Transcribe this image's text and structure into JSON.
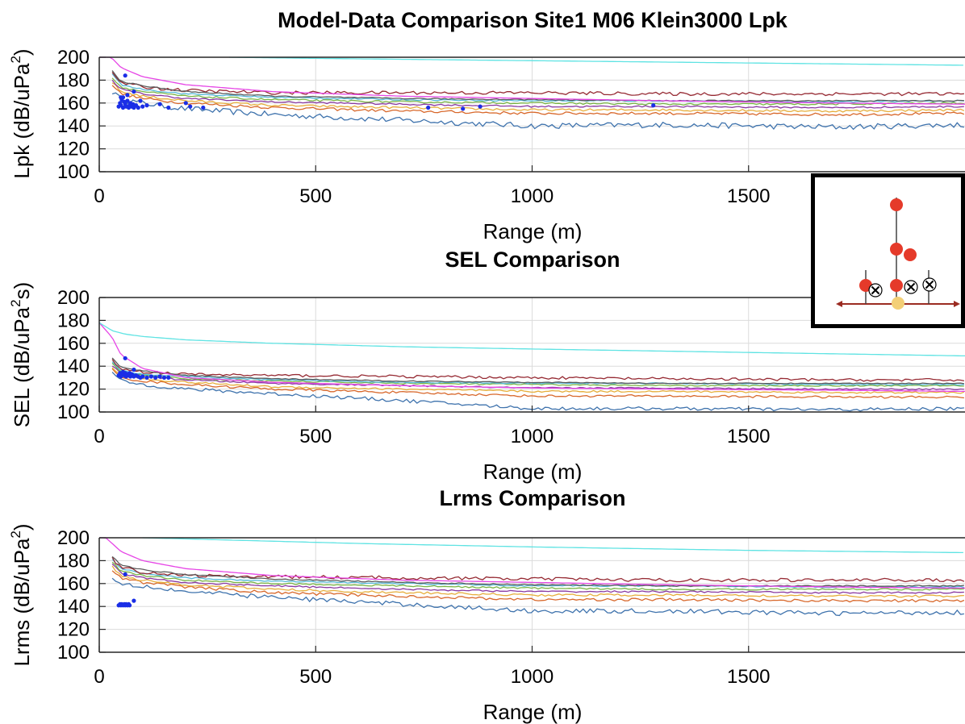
{
  "figure": {
    "title": "Model-Data Comparison Site1 M06 Klein3000 Lpk"
  },
  "colors": {
    "data_points": "#1a2ee6",
    "series": [
      "#3f73ad",
      "#d8682b",
      "#e6ae3c",
      "#8a3aa1",
      "#7ab547",
      "#56b9d8",
      "#962a33",
      "#5b5b5b",
      "#e645e6",
      "#5fe3e3"
    ]
  },
  "chart_data": [
    {
      "type": "line",
      "name": "lpk",
      "title": "",
      "xlabel": "Range (m)",
      "ylabel_prefix": "Lpk (dB/uPa",
      "ylabel_sup": "2",
      "ylabel_suffix": ")",
      "xlim": [
        0,
        2000
      ],
      "ylim": [
        100,
        200
      ],
      "xticks": [
        0,
        500,
        1000,
        1500
      ],
      "yticks": [
        100,
        120,
        140,
        160,
        180,
        200
      ],
      "xtick_labels": [
        "0",
        "500",
        "1000",
        "1500"
      ],
      "ytick_labels": [
        "100",
        "120",
        "140",
        "160",
        "180",
        "200"
      ],
      "grid": true,
      "series": [
        {
          "x": [
            30,
            50,
            100,
            200,
            400,
            700,
            1000,
            1300,
            1700,
            2000
          ],
          "values": [
            170,
            163,
            160,
            155,
            150,
            145,
            140,
            141,
            139,
            141
          ],
          "noise": 2.5
        },
        {
          "x": [
            30,
            50,
            100,
            200,
            400,
            700,
            1000,
            1300,
            1700,
            2000
          ],
          "values": [
            176,
            168,
            164,
            160,
            156,
            153,
            151,
            151,
            150,
            151
          ],
          "noise": 1.2
        },
        {
          "x": [
            30,
            50,
            100,
            200,
            400,
            700,
            1000,
            1300,
            1700,
            2000
          ],
          "values": [
            178,
            170,
            166,
            162,
            158,
            156,
            154,
            154,
            153,
            154
          ],
          "noise": 1.0
        },
        {
          "x": [
            30,
            50,
            100,
            200,
            400,
            700,
            1000,
            1300,
            1700,
            2000
          ],
          "values": [
            180,
            172,
            168,
            164,
            161,
            159,
            157,
            157,
            156,
            157
          ],
          "noise": 0.7
        },
        {
          "x": [
            30,
            50,
            100,
            200,
            400,
            700,
            1000,
            1300,
            1700,
            2000
          ],
          "values": [
            182,
            174,
            170,
            166,
            163,
            161,
            160,
            159,
            159,
            160
          ],
          "noise": 0.8
        },
        {
          "x": [
            30,
            50,
            100,
            200,
            400,
            700,
            1000,
            1300,
            1700,
            2000
          ],
          "values": [
            185,
            176,
            172,
            168,
            165,
            163,
            162,
            162,
            161,
            162
          ],
          "noise": 0.6
        },
        {
          "x": [
            30,
            50,
            100,
            200,
            400,
            700,
            1000,
            1300,
            1700,
            2000
          ],
          "values": [
            186,
            178,
            174,
            171,
            169,
            169,
            169,
            168,
            168,
            168
          ],
          "noise": 1.5
        },
        {
          "x": [
            30,
            50,
            100,
            200,
            400,
            700,
            1000,
            1300,
            1700,
            2000
          ],
          "values": [
            188,
            179,
            175,
            170,
            166,
            164,
            163,
            162,
            162,
            162
          ],
          "noise": 0.5
        },
        {
          "x": [
            0,
            30,
            50,
            100,
            200,
            400,
            700,
            1000,
            1300,
            1700,
            2000
          ],
          "values": [
            205,
            199,
            191,
            183,
            176,
            170,
            166,
            164,
            162,
            160,
            159
          ],
          "noise": 0
        },
        {
          "x": [
            300,
            500,
            1000,
            1500,
            2000
          ],
          "values": [
            200,
            199,
            197,
            195,
            193
          ],
          "noise": 0
        }
      ],
      "points": {
        "x": [
          45,
          48,
          50,
          52,
          55,
          58,
          60,
          62,
          65,
          68,
          70,
          72,
          75,
          78,
          80,
          85,
          90,
          95,
          100,
          110,
          140,
          160,
          200,
          210,
          240,
          60,
          80,
          50,
          55,
          65,
          760,
          840,
          880,
          1280
        ],
        "y": [
          157,
          160,
          158,
          163,
          156,
          161,
          159,
          157,
          162,
          156,
          158,
          160,
          157,
          159,
          156,
          158,
          156,
          162,
          157,
          158,
          159,
          156,
          160,
          157,
          156,
          184,
          170,
          165,
          165,
          167,
          156,
          155,
          157,
          158
        ]
      }
    },
    {
      "type": "line",
      "name": "sel",
      "title": "SEL Comparison",
      "xlabel": "Range (m)",
      "ylabel_prefix": "SEL (dB/uPa",
      "ylabel_sup": "2",
      "ylabel_suffix": "s)",
      "xlim": [
        0,
        2000
      ],
      "ylim": [
        100,
        200
      ],
      "xticks": [
        0,
        500,
        1000,
        1500
      ],
      "yticks": [
        100,
        120,
        140,
        160,
        180,
        200
      ],
      "xtick_labels": [
        "0",
        "500",
        "1000",
        "1500"
      ],
      "ytick_labels": [
        "100",
        "120",
        "140",
        "160",
        "180",
        "200"
      ],
      "grid": true,
      "series": [
        {
          "x": [
            30,
            50,
            100,
            200,
            400,
            700,
            1000,
            1300,
            1700,
            2000
          ],
          "values": [
            135,
            127,
            124,
            120,
            116,
            110,
            103,
            103,
            102,
            103
          ],
          "noise": 1.5
        },
        {
          "x": [
            30,
            50,
            100,
            200,
            400,
            700,
            1000,
            1300,
            1700,
            2000
          ],
          "values": [
            137,
            130,
            127,
            124,
            120,
            117,
            114,
            114,
            113,
            113
          ],
          "noise": 1.0
        },
        {
          "x": [
            30,
            50,
            100,
            200,
            400,
            700,
            1000,
            1300,
            1700,
            2000
          ],
          "values": [
            139,
            132,
            129,
            126,
            122,
            120,
            118,
            118,
            117,
            117
          ],
          "noise": 0.8
        },
        {
          "x": [
            30,
            50,
            100,
            200,
            400,
            700,
            1000,
            1300,
            1700,
            2000
          ],
          "values": [
            140,
            134,
            131,
            128,
            125,
            123,
            121,
            121,
            120,
            120
          ],
          "noise": 0.6
        },
        {
          "x": [
            30,
            50,
            100,
            200,
            400,
            700,
            1000,
            1300,
            1700,
            2000
          ],
          "values": [
            142,
            135,
            132,
            129,
            127,
            125,
            124,
            123,
            123,
            123
          ],
          "noise": 0.6
        },
        {
          "x": [
            30,
            50,
            100,
            200,
            400,
            700,
            1000,
            1300,
            1700,
            2000
          ],
          "values": [
            144,
            136,
            133,
            131,
            128,
            126,
            125,
            125,
            124,
            124
          ],
          "noise": 0.5
        },
        {
          "x": [
            30,
            50,
            100,
            200,
            400,
            700,
            1000,
            1300,
            1700,
            2000
          ],
          "values": [
            145,
            138,
            135,
            133,
            132,
            131,
            130,
            129,
            128,
            128
          ],
          "noise": 1.2
        },
        {
          "x": [
            30,
            50,
            100,
            200,
            400,
            700,
            1000,
            1300,
            1700,
            2000
          ],
          "values": [
            147,
            139,
            136,
            132,
            129,
            127,
            126,
            125,
            125,
            125
          ],
          "noise": 0.4
        },
        {
          "x": [
            0,
            30,
            50,
            100,
            200,
            400,
            700,
            1000,
            1300,
            1700,
            2000
          ],
          "values": [
            178,
            165,
            150,
            138,
            130,
            126,
            123,
            121,
            120,
            119,
            118
          ],
          "noise": 0
        },
        {
          "x": [
            0,
            30,
            60,
            100,
            200,
            400,
            700,
            1000,
            1500,
            2000
          ],
          "values": [
            178,
            171,
            168,
            166,
            163,
            160,
            157,
            155,
            152,
            149
          ],
          "noise": 0
        }
      ],
      "points": {
        "x": [
          45,
          48,
          50,
          52,
          55,
          58,
          60,
          62,
          65,
          68,
          70,
          72,
          75,
          78,
          80,
          85,
          90,
          95,
          100,
          110,
          120,
          130,
          140,
          150,
          160,
          60,
          80
        ],
        "y": [
          132,
          134,
          131,
          133,
          135,
          132,
          134,
          131,
          133,
          132,
          134,
          131,
          133,
          132,
          131,
          132,
          131,
          130,
          131,
          130,
          131,
          130,
          131,
          130,
          130,
          147,
          137
        ]
      }
    },
    {
      "type": "line",
      "name": "lrms",
      "title": "Lrms Comparison",
      "xlabel": "Range (m)",
      "ylabel_prefix": "Lrms (dB/uPa",
      "ylabel_sup": "2",
      "ylabel_suffix": ")",
      "xlim": [
        0,
        2000
      ],
      "ylim": [
        100,
        200
      ],
      "xticks": [
        0,
        500,
        1000,
        1500
      ],
      "yticks": [
        100,
        120,
        140,
        160,
        180,
        200
      ],
      "xtick_labels": [
        "0",
        "500",
        "1000",
        "1500"
      ],
      "ytick_labels": [
        "100",
        "120",
        "140",
        "160",
        "180",
        "200"
      ],
      "grid": true,
      "series": [
        {
          "x": [
            30,
            50,
            100,
            200,
            400,
            700,
            1000,
            1300,
            1700,
            2000
          ],
          "values": [
            165,
            160,
            158,
            153,
            148,
            142,
            136,
            136,
            134,
            135
          ],
          "noise": 2.0
        },
        {
          "x": [
            30,
            50,
            100,
            200,
            400,
            700,
            1000,
            1300,
            1700,
            2000
          ],
          "values": [
            172,
            165,
            161,
            157,
            152,
            149,
            146,
            146,
            145,
            145
          ],
          "noise": 1.2
        },
        {
          "x": [
            30,
            50,
            100,
            200,
            400,
            700,
            1000,
            1300,
            1700,
            2000
          ],
          "values": [
            175,
            167,
            163,
            159,
            155,
            152,
            150,
            150,
            149,
            149
          ],
          "noise": 1.0
        },
        {
          "x": [
            30,
            50,
            100,
            200,
            400,
            700,
            1000,
            1300,
            1700,
            2000
          ],
          "values": [
            177,
            169,
            165,
            161,
            158,
            155,
            153,
            153,
            152,
            152
          ],
          "noise": 0.7
        },
        {
          "x": [
            30,
            50,
            100,
            200,
            400,
            700,
            1000,
            1300,
            1700,
            2000
          ],
          "values": [
            179,
            171,
            167,
            163,
            160,
            158,
            156,
            155,
            155,
            155
          ],
          "noise": 0.7
        },
        {
          "x": [
            30,
            50,
            100,
            200,
            400,
            700,
            1000,
            1300,
            1700,
            2000
          ],
          "values": [
            181,
            173,
            169,
            165,
            162,
            160,
            158,
            158,
            157,
            157
          ],
          "noise": 0.6
        },
        {
          "x": [
            30,
            50,
            100,
            200,
            400,
            700,
            1000,
            1300,
            1700,
            2000
          ],
          "values": [
            182,
            174,
            170,
            167,
            166,
            165,
            164,
            163,
            163,
            163
          ],
          "noise": 1.5
        },
        {
          "x": [
            30,
            50,
            100,
            200,
            400,
            700,
            1000,
            1300,
            1700,
            2000
          ],
          "values": [
            184,
            176,
            172,
            168,
            164,
            161,
            159,
            158,
            158,
            158
          ],
          "noise": 0.5
        },
        {
          "x": [
            0,
            30,
            50,
            100,
            200,
            400,
            700,
            1000,
            1300,
            1700,
            2000
          ],
          "values": [
            205,
            195,
            188,
            180,
            173,
            167,
            163,
            161,
            159,
            157,
            156
          ],
          "noise": 0
        },
        {
          "x": [
            100,
            300,
            600,
            1000,
            1500,
            2000
          ],
          "values": [
            200,
            198,
            195,
            192,
            189,
            187
          ],
          "noise": 0
        }
      ],
      "points": {
        "x": [
          45,
          48,
          50,
          52,
          55,
          58,
          60,
          62,
          65,
          68,
          70,
          80,
          60
        ],
        "y": [
          141,
          142,
          141,
          142,
          141,
          142,
          141,
          142,
          141,
          142,
          141,
          145,
          168
        ]
      }
    }
  ]
}
